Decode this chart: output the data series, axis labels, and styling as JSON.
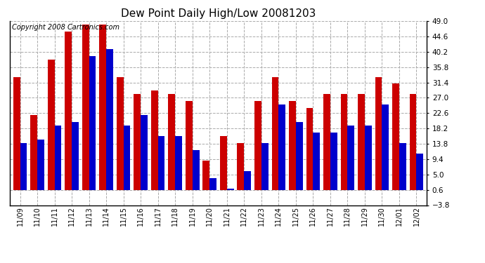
{
  "title": "Dew Point Daily High/Low 20081203",
  "copyright": "Copyright 2008 Cartronics.com",
  "dates": [
    "11/09",
    "11/10",
    "11/11",
    "11/12",
    "11/13",
    "11/14",
    "11/15",
    "11/16",
    "11/17",
    "11/18",
    "11/19",
    "11/20",
    "11/21",
    "11/22",
    "11/23",
    "11/24",
    "11/25",
    "11/26",
    "11/27",
    "11/28",
    "11/29",
    "11/30",
    "12/01",
    "12/02"
  ],
  "highs": [
    33.0,
    22.0,
    38.0,
    46.0,
    48.0,
    48.0,
    33.0,
    28.0,
    29.0,
    28.0,
    26.0,
    9.0,
    16.0,
    14.0,
    26.0,
    33.0,
    26.0,
    24.0,
    28.0,
    28.0,
    28.0,
    33.0,
    31.0,
    28.0
  ],
  "lows": [
    14.0,
    15.0,
    19.0,
    20.0,
    39.0,
    41.0,
    19.0,
    22.0,
    16.0,
    16.0,
    12.0,
    4.0,
    1.0,
    6.0,
    14.0,
    25.0,
    20.0,
    17.0,
    17.0,
    19.0,
    19.0,
    25.0,
    14.0,
    11.0
  ],
  "high_color": "#cc0000",
  "low_color": "#0000cc",
  "background_color": "#ffffff",
  "grid_color": "#aaaaaa",
  "ylim": [
    -3.8,
    49.0
  ],
  "yticks": [
    -3.8,
    0.6,
    5.0,
    9.4,
    13.8,
    18.2,
    22.6,
    27.0,
    31.4,
    35.8,
    40.2,
    44.6,
    49.0
  ],
  "title_fontsize": 11,
  "copyright_fontsize": 7,
  "bar_width": 0.4,
  "bar_bottom": 0.6
}
